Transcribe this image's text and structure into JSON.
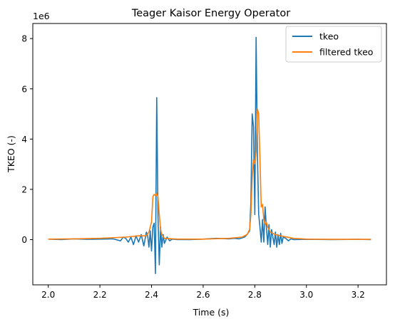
{
  "chart_data": {
    "type": "line",
    "title": "Teager Kaisor Energy Operator",
    "xlabel": "Time (s)",
    "ylabel": "TKEO (-)",
    "y_multiplier_label": "1e6",
    "xlim": [
      1.94,
      3.31
    ],
    "ylim": [
      -1.8,
      8.6
    ],
    "x_ticks": [
      2.0,
      2.2,
      2.4,
      2.6,
      2.8,
      3.0,
      3.2
    ],
    "x_tick_labels": [
      "2.0",
      "2.2",
      "2.4",
      "2.6",
      "2.8",
      "3.0",
      "3.2"
    ],
    "y_ticks": [
      0,
      2,
      4,
      6,
      8
    ],
    "y_tick_labels": [
      "0",
      "2",
      "4",
      "6",
      "8"
    ],
    "grid": false,
    "legend_position": "top-right",
    "series": [
      {
        "name": "tkeo",
        "color": "#1f77b4",
        "x": [
          2.0,
          2.05,
          2.1,
          2.15,
          2.2,
          2.25,
          2.28,
          2.29,
          2.3,
          2.31,
          2.32,
          2.33,
          2.34,
          2.35,
          2.36,
          2.37,
          2.38,
          2.385,
          2.39,
          2.395,
          2.4,
          2.405,
          2.41,
          2.415,
          2.42,
          2.425,
          2.43,
          2.435,
          2.44,
          2.445,
          2.45,
          2.46,
          2.47,
          2.48,
          2.5,
          2.55,
          2.6,
          2.65,
          2.7,
          2.72,
          2.74,
          2.76,
          2.77,
          2.78,
          2.785,
          2.79,
          2.795,
          2.8,
          2.805,
          2.81,
          2.815,
          2.82,
          2.825,
          2.83,
          2.835,
          2.84,
          2.845,
          2.85,
          2.855,
          2.86,
          2.865,
          2.87,
          2.875,
          2.88,
          2.885,
          2.89,
          2.895,
          2.9,
          2.905,
          2.91,
          2.92,
          2.93,
          2.94,
          2.95,
          3.0,
          3.1,
          3.2,
          3.25
        ],
        "y": [
          0.02,
          0.0,
          0.03,
          0.01,
          0.02,
          0.03,
          -0.05,
          0.1,
          0.05,
          -0.1,
          0.1,
          -0.2,
          0.15,
          -0.1,
          0.2,
          -0.25,
          0.3,
          0.15,
          -0.3,
          0.35,
          -0.45,
          0.5,
          0.65,
          -1.35,
          5.65,
          0.9,
          -1.0,
          0.5,
          -0.3,
          0.2,
          -0.15,
          0.1,
          -0.05,
          0.02,
          0.0,
          0.0,
          0.02,
          0.05,
          0.03,
          0.05,
          0.03,
          0.1,
          0.2,
          0.35,
          1.5,
          5.0,
          4.5,
          1.0,
          8.05,
          3.5,
          1.0,
          0.5,
          -0.1,
          0.8,
          -0.1,
          1.3,
          0.5,
          -0.2,
          0.6,
          -0.3,
          0.4,
          0.1,
          -0.2,
          0.3,
          -0.3,
          0.2,
          -0.2,
          0.25,
          -0.15,
          0.1,
          0.05,
          -0.05,
          0.03,
          0.0,
          0.01,
          0.0,
          0.01,
          0.0
        ]
      },
      {
        "name": "filtered tkeo",
        "color": "#ff7f0e",
        "x": [
          2.0,
          2.1,
          2.2,
          2.3,
          2.35,
          2.38,
          2.39,
          2.4,
          2.405,
          2.41,
          2.415,
          2.42,
          2.425,
          2.43,
          2.435,
          2.44,
          2.45,
          2.5,
          2.6,
          2.7,
          2.75,
          2.77,
          2.78,
          2.785,
          2.79,
          2.795,
          2.8,
          2.805,
          2.81,
          2.815,
          2.82,
          2.825,
          2.83,
          2.835,
          2.84,
          2.845,
          2.85,
          2.86,
          2.87,
          2.88,
          2.9,
          2.95,
          3.0,
          3.1,
          3.25
        ],
        "y": [
          0.02,
          0.03,
          0.05,
          0.1,
          0.15,
          0.15,
          0.3,
          0.7,
          1.7,
          1.8,
          1.75,
          1.85,
          1.7,
          1.0,
          0.4,
          0.2,
          0.05,
          0.02,
          0.02,
          0.05,
          0.1,
          0.2,
          0.4,
          1.0,
          2.4,
          3.2,
          3.0,
          3.5,
          5.2,
          5.0,
          3.2,
          1.3,
          1.4,
          0.8,
          0.6,
          0.7,
          0.5,
          0.3,
          0.25,
          0.2,
          0.15,
          0.05,
          0.02,
          0.01,
          0.01
        ]
      }
    ]
  }
}
